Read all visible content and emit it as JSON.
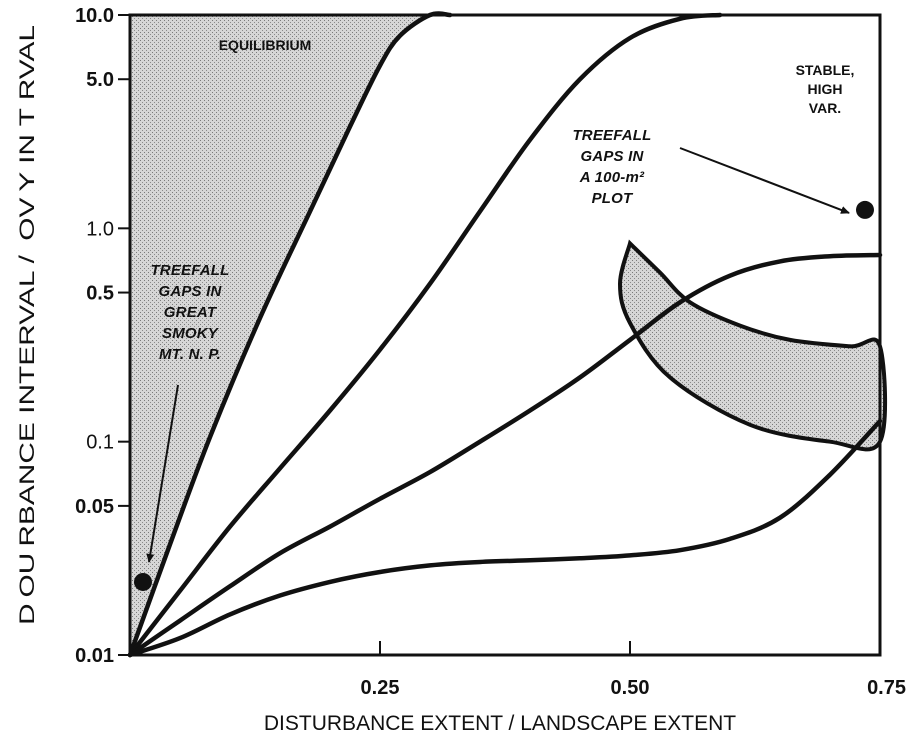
{
  "chart_data": {
    "type": "line",
    "title": "",
    "xlabel": "DISTURBANCE EXTENT / LANDSCAPE EXTENT",
    "ylabel": "DISTURBANCE INTERVAL / RECOVERY INTERVAL",
    "ylabel_rendered": "D OU RBANCE INTERVAL /  OV Y IN T RVAL",
    "x_scale": "linear",
    "y_scale": "log",
    "xlim": [
      0,
      0.75
    ],
    "ylim": [
      0.01,
      10.0
    ],
    "x_ticks": [
      {
        "value": 0.25,
        "label": "0.25"
      },
      {
        "value": 0.5,
        "label": "0.50"
      },
      {
        "value": 0.75,
        "label": "0.75"
      }
    ],
    "y_ticks": [
      {
        "value": 0.01,
        "label": "0.01",
        "bold": true
      },
      {
        "value": 0.05,
        "label": "0.05",
        "bold": true
      },
      {
        "value": 0.1,
        "label": "0.1",
        "bold": false
      },
      {
        "value": 0.5,
        "label": "0.5",
        "bold": true
      },
      {
        "value": 1.0,
        "label": "1.0",
        "bold": false
      },
      {
        "value": 5.0,
        "label": "5.0",
        "bold": true
      },
      {
        "value": 10.0,
        "label": "10.0",
        "bold": true
      }
    ],
    "grid": false,
    "legend": "none",
    "series": [
      {
        "x": [
          0,
          0.04,
          0.08,
          0.13,
          0.18,
          0.22,
          0.25,
          0.27,
          0.3,
          0.32
        ],
        "y": [
          0.01,
          0.033,
          0.105,
          0.38,
          1.2,
          3.0,
          5.8,
          8.0,
          10.0,
          10.0
        ]
      },
      {
        "x": [
          0,
          0.05,
          0.1,
          0.15,
          0.2,
          0.25,
          0.3,
          0.35,
          0.4,
          0.45,
          0.5,
          0.55,
          0.59
        ],
        "y": [
          0.01,
          0.02,
          0.04,
          0.075,
          0.14,
          0.27,
          0.55,
          1.2,
          2.6,
          5.0,
          7.8,
          9.6,
          10.0
        ]
      },
      {
        "x": [
          0,
          0.05,
          0.1,
          0.15,
          0.2,
          0.25,
          0.3,
          0.35,
          0.4,
          0.45,
          0.5,
          0.55,
          0.6,
          0.65,
          0.7,
          0.75
        ],
        "y": [
          0.01,
          0.0145,
          0.021,
          0.03,
          0.04,
          0.054,
          0.072,
          0.1,
          0.14,
          0.2,
          0.3,
          0.45,
          0.6,
          0.7,
          0.74,
          0.75
        ]
      },
      {
        "x": [
          0,
          0.05,
          0.1,
          0.15,
          0.2,
          0.25,
          0.3,
          0.35,
          0.4,
          0.45,
          0.5,
          0.55,
          0.6,
          0.65,
          0.7,
          0.75
        ],
        "y": [
          0.01,
          0.012,
          0.0155,
          0.019,
          0.022,
          0.0245,
          0.0263,
          0.0273,
          0.0278,
          0.0284,
          0.0293,
          0.031,
          0.035,
          0.044,
          0.07,
          0.125
        ]
      }
    ],
    "regions": [
      {
        "name": "EQUILIBRIUM",
        "boundary_x": [
          0,
          0.04,
          0.08,
          0.13,
          0.18,
          0.22,
          0.25,
          0.27,
          0.3,
          0.32
        ],
        "boundary_y": [
          0.01,
          0.033,
          0.105,
          0.38,
          1.2,
          3.0,
          5.8,
          8.0,
          10.0,
          10.0
        ]
      },
      {
        "name": "STABLE, HIGH VAR.",
        "outline": [
          [
            0.5,
            0.85
          ],
          [
            0.53,
            0.62
          ],
          [
            0.56,
            0.45
          ],
          [
            0.61,
            0.35
          ],
          [
            0.66,
            0.3
          ],
          [
            0.72,
            0.28
          ],
          [
            0.75,
            0.28
          ],
          [
            0.75,
            0.1
          ],
          [
            0.7,
            0.1
          ],
          [
            0.62,
            0.12
          ],
          [
            0.54,
            0.2
          ],
          [
            0.5,
            0.36
          ],
          [
            0.49,
            0.55
          ],
          [
            0.5,
            0.85
          ]
        ]
      }
    ],
    "annotations": [
      {
        "id": "equilibrium",
        "lines": [
          "EQUILIBRIUM"
        ]
      },
      {
        "id": "stable",
        "lines": [
          "STABLE,",
          "HIGH",
          "VAR."
        ]
      },
      {
        "id": "plot100",
        "lines": [
          "TREEFALL",
          "GAPS IN",
          "A 100-m²",
          "PLOT"
        ]
      },
      {
        "id": "smoky",
        "lines": [
          "TREEFALL",
          "GAPS IN",
          "GREAT",
          "SMOKY",
          "MT. N. P."
        ]
      }
    ],
    "points": [
      {
        "x": 0.013,
        "y": 0.022,
        "label": "TREEFALL GAPS IN GREAT SMOKY MT. N. P."
      },
      {
        "x": 0.735,
        "y": 1.22,
        "label": "TREEFALL GAPS IN A 100-m² PLOT"
      }
    ]
  }
}
